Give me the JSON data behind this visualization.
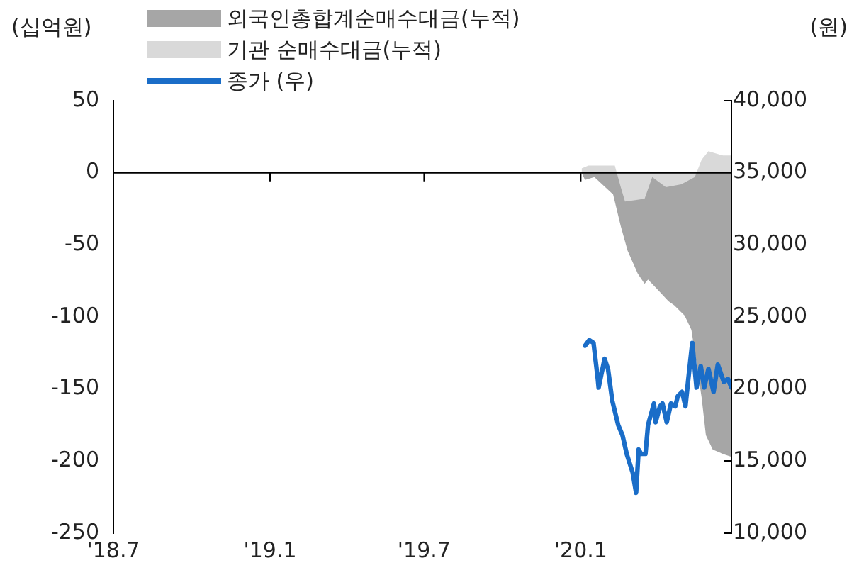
{
  "chart_data": {
    "type": "area",
    "ylabel": "(십억원)",
    "y2label": "(원)",
    "legend": "top",
    "xlim": [
      "2018-07-01",
      "2020-06-26"
    ],
    "xticks": [
      {
        "value": "2018-07-01",
        "label": "'18.7"
      },
      {
        "value": "2019-01-01",
        "label": "'19.1"
      },
      {
        "value": "2019-07-01",
        "label": "'19.7"
      },
      {
        "value": "2020-01-01",
        "label": "'20.1"
      }
    ],
    "ylim": [
      -250,
      50
    ],
    "yticks": [
      -250,
      -200,
      -150,
      -100,
      -50,
      0,
      50
    ],
    "y2lim": [
      10000,
      40000
    ],
    "y2ticks": [
      {
        "value": 10000,
        "label": "10,000"
      },
      {
        "value": 15000,
        "label": "15,000"
      },
      {
        "value": 20000,
        "label": "20,000"
      },
      {
        "value": 25000,
        "label": "25,000"
      },
      {
        "value": 30000,
        "label": "30,000"
      },
      {
        "value": 35000,
        "label": "35,000"
      },
      {
        "value": 40000,
        "label": "40,000"
      }
    ],
    "grid": false,
    "ref_lines": [
      {
        "axis": "y",
        "value": 0,
        "color": "#000000"
      }
    ],
    "series": [
      {
        "name": "외국인총합계순매수대금(누적)",
        "color": "#a6a6a6",
        "x": [
          "2020-01-02",
          "2020-01-06",
          "2020-01-17",
          "2020-02-08",
          "2020-02-17",
          "2020-02-25",
          "2020-03-08",
          "2020-03-16",
          "2020-03-20",
          "2020-03-28",
          "2020-04-05",
          "2020-04-13",
          "2020-04-20",
          "2020-05-02",
          "2020-05-10",
          "2020-05-17",
          "2020-05-22",
          "2020-05-27",
          "2020-06-04",
          "2020-06-16",
          "2020-06-26"
        ],
        "values": [
          0,
          -5,
          -3,
          -15,
          -37,
          -54,
          -70,
          -77,
          -74,
          -79,
          -84,
          -89,
          -92,
          -99,
          -109,
          -136,
          -156,
          -182,
          -192,
          -195,
          -197
        ]
      },
      {
        "name": "기관 순매수대금(누적)",
        "color": "#d9d9d9",
        "x": [
          "2020-01-02",
          "2020-01-10",
          "2020-01-20",
          "2020-02-10",
          "2020-02-17",
          "2020-02-22",
          "2020-03-05",
          "2020-03-16",
          "2020-03-25",
          "2020-04-10",
          "2020-04-28",
          "2020-05-14",
          "2020-05-22",
          "2020-05-30",
          "2020-06-16",
          "2020-06-26"
        ],
        "values": [
          3,
          5,
          5,
          5,
          -10,
          -20,
          -19,
          -18,
          -3,
          -10,
          -8,
          -3,
          9,
          15,
          12,
          12
        ]
      },
      {
        "name": "종가 (우)",
        "type": "line",
        "axis": "y2",
        "color": "#1a6dc8",
        "x": [
          "2020-01-06",
          "2020-01-11",
          "2020-01-16",
          "2020-01-21",
          "2020-01-22",
          "2020-01-29",
          "2020-02-02",
          "2020-02-07",
          "2020-02-14",
          "2020-02-19",
          "2020-02-24",
          "2020-03-02",
          "2020-03-06",
          "2020-03-09",
          "2020-03-12",
          "2020-03-17",
          "2020-03-20",
          "2020-03-27",
          "2020-03-29",
          "2020-04-03",
          "2020-04-06",
          "2020-04-11",
          "2020-04-16",
          "2020-04-21",
          "2020-04-24",
          "2020-04-29",
          "2020-05-03",
          "2020-05-06",
          "2020-05-11",
          "2020-05-16",
          "2020-05-21",
          "2020-05-25",
          "2020-05-30",
          "2020-06-05",
          "2020-06-10",
          "2020-06-17",
          "2020-06-22",
          "2020-06-26"
        ],
        "values": [
          23000,
          23400,
          23200,
          20700,
          20100,
          22100,
          21400,
          19200,
          17500,
          16800,
          15500,
          14200,
          12800,
          15800,
          15500,
          15500,
          17500,
          19000,
          17700,
          18800,
          19000,
          17700,
          19000,
          18800,
          19500,
          19800,
          18800,
          20500,
          23200,
          20100,
          21600,
          20100,
          21400,
          19800,
          21700,
          20500,
          20700,
          20100
        ]
      }
    ]
  }
}
